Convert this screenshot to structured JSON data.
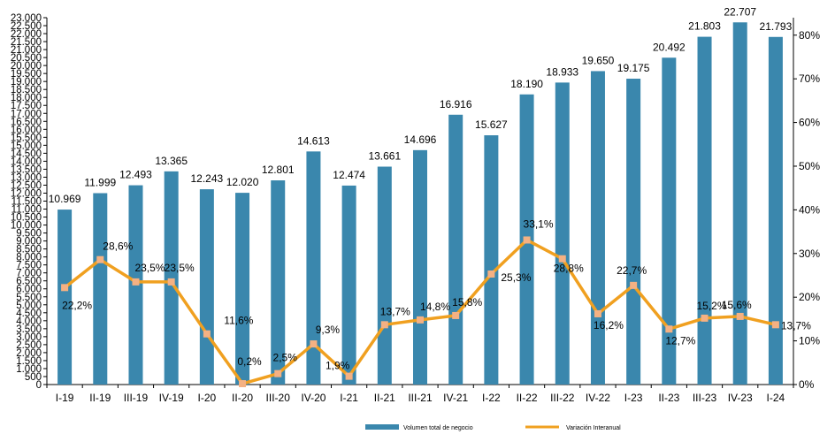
{
  "chart_data": {
    "type": "bar",
    "categories": [
      "I-19",
      "II-19",
      "III-19",
      "IV-19",
      "I-20",
      "II-20",
      "III-20",
      "IV-20",
      "I-21",
      "II-21",
      "III-21",
      "IV-21",
      "I-22",
      "II-22",
      "III-22",
      "IV-22",
      "I-23",
      "II-23",
      "III-23",
      "IV-23",
      "I-24"
    ],
    "series": [
      {
        "name": "Volumen total de negocio",
        "type": "bar",
        "axis": "left",
        "color": "#3a87ad",
        "values": [
          10969,
          11999,
          12493,
          13365,
          12243,
          12020,
          12801,
          14613,
          12474,
          13661,
          14696,
          16916,
          15627,
          18190,
          18933,
          19650,
          19175,
          20492,
          21803,
          22707,
          21793
        ],
        "labels": [
          "10.969",
          "11.999",
          "12.493",
          "13.365",
          "12.243",
          "12.020",
          "12.801",
          "14.613",
          "12.474",
          "13.661",
          "14.696",
          "16.916",
          "15.627",
          "18.190",
          "18.933",
          "19.650",
          "19.175",
          "20.492",
          "21.803",
          "22.707",
          "21.793"
        ]
      },
      {
        "name": "Variación Interanual",
        "type": "line",
        "axis": "right",
        "color": "#f0a020",
        "marker_color": "#f4b183",
        "values": [
          22.2,
          28.6,
          23.5,
          23.5,
          11.6,
          0.2,
          2.5,
          9.3,
          1.9,
          13.7,
          14.8,
          15.8,
          25.3,
          33.1,
          28.8,
          16.2,
          22.7,
          12.7,
          15.2,
          15.6,
          13.7
        ],
        "labels": [
          "22,2%",
          "28,6%",
          "23,5%",
          "23,5%",
          "11,6%",
          "0,2%",
          "2,5%",
          "9,3%",
          "1,9%",
          "13,7%",
          "14,8%",
          "15,8%",
          "25,3%",
          "33,1%",
          "28,8%",
          "16,2%",
          "22,7%",
          "12,7%",
          "15,2%",
          "15,6%",
          "13,7%"
        ]
      }
    ],
    "y_left": {
      "min": 0,
      "max": 23000,
      "ticks": [
        0,
        500,
        1000,
        1500,
        2000,
        2500,
        3000,
        3500,
        4000,
        4500,
        5000,
        5500,
        6000,
        6500,
        7000,
        7500,
        8000,
        8500,
        9000,
        9500,
        10000,
        10500,
        11000,
        11500,
        12000,
        12500,
        13000,
        13500,
        14000,
        14500,
        15000,
        15500,
        16000,
        16500,
        17000,
        17500,
        18000,
        18500,
        19000,
        19500,
        20000,
        20500,
        21000,
        21500,
        22000,
        22500,
        23000
      ],
      "tick_labels": [
        "0",
        "500",
        "1.000",
        "1.500",
        "2.000",
        "2.500",
        "3.000",
        "3.500",
        "4.000",
        "4.500",
        "5.000",
        "5.500",
        "6.000",
        "6.500",
        "7.000",
        "7.500",
        "8.000",
        "8.500",
        "9.000",
        "9.500",
        "10.000",
        "10.500",
        "11.000",
        "11.500",
        "12.000",
        "12.500",
        "13.000",
        "13.500",
        "14.000",
        "14.500",
        "15.000",
        "15.500",
        "16.000",
        "16.500",
        "17.000",
        "17.500",
        "18.000",
        "18.500",
        "19.000",
        "19.500",
        "20.000",
        "20.500",
        "21.000",
        "21.500",
        "22.000",
        "22.500",
        "23.000"
      ]
    },
    "y_right": {
      "min": 0,
      "max": 84,
      "ticks": [
        0,
        10,
        20,
        30,
        40,
        50,
        60,
        70,
        80
      ],
      "tick_labels": [
        "0%",
        "10%",
        "20%",
        "30%",
        "40%",
        "50%",
        "60%",
        "70%",
        "80%"
      ]
    },
    "grid": false,
    "legend": "bottom"
  }
}
